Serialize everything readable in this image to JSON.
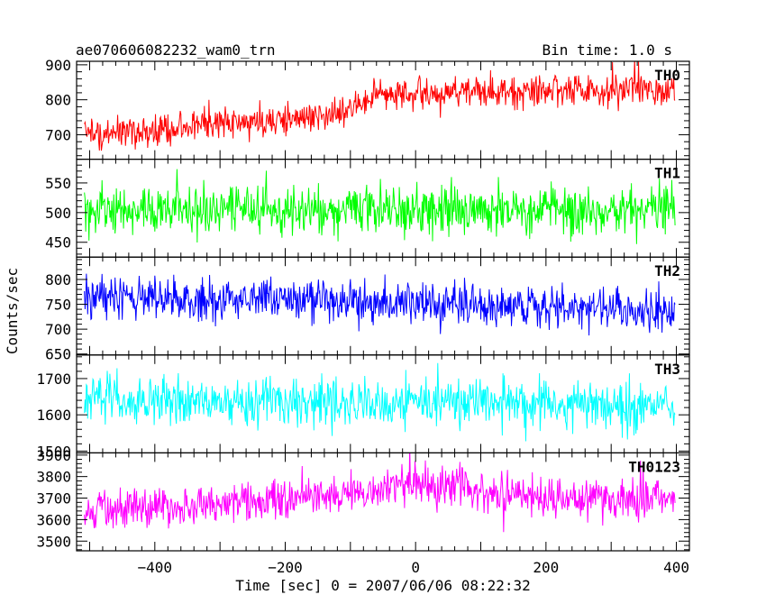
{
  "chart_data": {
    "type": "line",
    "title": "ae070606082232_wam0_trn",
    "subtitle": "Bin time: 1.0 s",
    "xlabel": "Time [sec] 0 = 2007/06/06 08:22:32",
    "ylabel": "Counts/sec",
    "xlim": [
      -520,
      420
    ],
    "x_range": [
      -508,
      398
    ],
    "x_ticks": [
      -400,
      -200,
      0,
      200,
      400
    ],
    "x_tick_labels": [
      "−400",
      "−200",
      "0",
      "200",
      "400"
    ],
    "grid": false,
    "panels": [
      {
        "name": "TH0",
        "color": "#ff0000",
        "ylim": [
          630,
          910
        ],
        "y_ticks": [
          700,
          800,
          900
        ],
        "y_tick_labels": [
          "700",
          "800",
          "900"
        ],
        "trend": [
          [
            -508,
            700
          ],
          [
            -300,
            728
          ],
          [
            -100,
            760
          ],
          [
            -70,
            810
          ],
          [
            100,
            825
          ],
          [
            398,
            835
          ]
        ],
        "noise_amplitude": 32
      },
      {
        "name": "TH1",
        "color": "#00ff00",
        "ylim": [
          425,
          590
        ],
        "y_ticks": [
          450,
          500,
          550
        ],
        "y_tick_labels": [
          "450",
          "500",
          "550"
        ],
        "trend": [
          [
            -508,
            505
          ],
          [
            398,
            505
          ]
        ],
        "noise_amplitude": 28
      },
      {
        "name": "TH2",
        "color": "#0000ff",
        "ylim": [
          648,
          845
        ],
        "y_ticks": [
          650,
          700,
          750,
          800
        ],
        "y_tick_labels": [
          "650",
          "700",
          "750",
          "800"
        ],
        "trend": [
          [
            -508,
            765
          ],
          [
            -100,
            755
          ],
          [
            398,
            735
          ]
        ],
        "noise_amplitude": 28
      },
      {
        "name": "TH3",
        "color": "#00ffff",
        "ylim": [
          1495,
          1765
        ],
        "y_ticks": [
          1500,
          1600,
          1700
        ],
        "y_tick_labels": [
          "1500",
          "1600",
          "1700"
        ],
        "trend": [
          [
            -508,
            1640
          ],
          [
            398,
            1625
          ]
        ],
        "noise_amplitude": 45
      },
      {
        "name": "TH0123",
        "color": "#ff00ff",
        "ylim": [
          3455,
          3910
        ],
        "y_ticks": [
          3500,
          3600,
          3700,
          3800,
          3900
        ],
        "y_tick_labels": [
          "3500",
          "3600",
          "3700",
          "3800",
          "3900"
        ],
        "trend": [
          [
            -508,
            3640
          ],
          [
            -300,
            3670
          ],
          [
            -100,
            3720
          ],
          [
            0,
            3770
          ],
          [
            200,
            3700
          ],
          [
            398,
            3690
          ]
        ],
        "noise_amplitude": 65
      }
    ]
  }
}
